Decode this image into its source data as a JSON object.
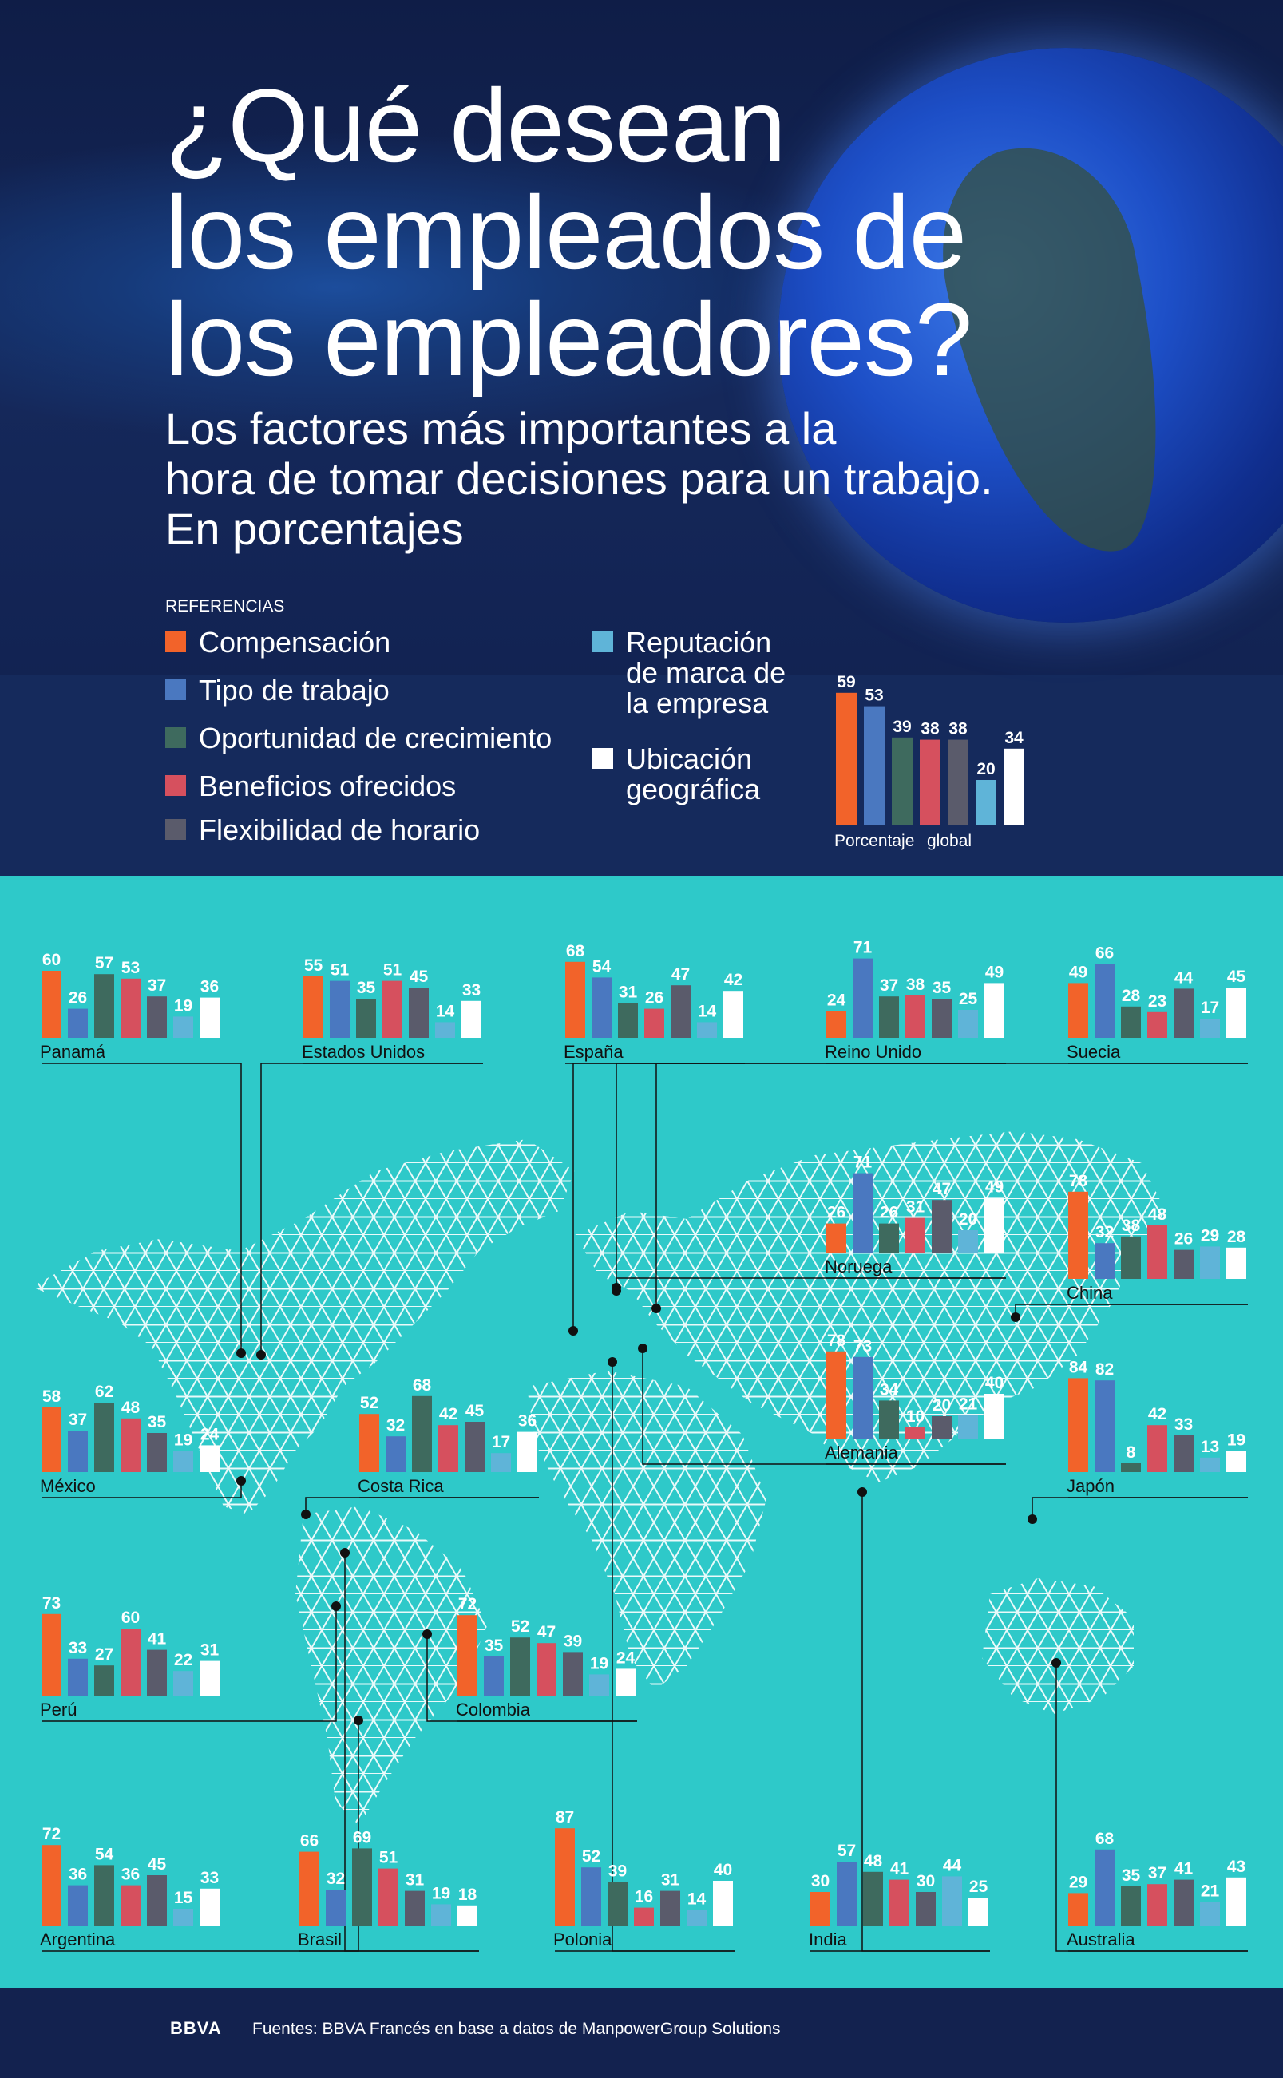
{
  "header": {
    "title_lines": [
      "¿Qué desean",
      "los empleados de",
      "los empleadores?"
    ],
    "subtitle_lines": [
      "Los factores más importantes a la",
      "hora de tomar decisiones para un trabajo.",
      "En porcentajes"
    ]
  },
  "legend": {
    "title": "REFERENCIAS",
    "items": [
      {
        "label": "Compensación",
        "color": "#f2632a"
      },
      {
        "label": "Tipo de trabajo",
        "color": "#4a78c0"
      },
      {
        "label": "Oportunidad de crecimiento",
        "color": "#3e6a5e"
      },
      {
        "label": "Beneficios ofrecidos",
        "color": "#d6505e"
      },
      {
        "label": "Flexibilidad de horario",
        "color": "#5a5b6b"
      },
      {
        "label": "Reputación de marca de la empresa",
        "color": "#5fb4d8"
      },
      {
        "label": "Ubicación geográfica",
        "color": "#ffffff"
      }
    ]
  },
  "footer": {
    "logo": "BBVA",
    "source": "Fuentes: BBVA Francés en base a datos de ManpowerGroup Solutions"
  },
  "chart_data": {
    "type": "bar",
    "unit": "%",
    "categories": [
      "Compensación",
      "Tipo de trabajo",
      "Oportunidad de crecimiento",
      "Beneficios ofrecidos",
      "Flexibilidad de horario",
      "Reputación de marca de la empresa",
      "Ubicación geográfica"
    ],
    "global": {
      "label_lines": [
        "Porcentaje",
        "global"
      ],
      "values": [
        59,
        53,
        39,
        38,
        38,
        20,
        34
      ]
    },
    "countries": [
      {
        "name": "Panamá",
        "values": [
          60,
          26,
          57,
          53,
          37,
          19,
          36
        ]
      },
      {
        "name": "Estados Unidos",
        "values": [
          55,
          51,
          35,
          51,
          45,
          14,
          33
        ]
      },
      {
        "name": "España",
        "values": [
          68,
          54,
          31,
          26,
          47,
          14,
          42
        ]
      },
      {
        "name": "Reino Unido",
        "values": [
          24,
          71,
          37,
          38,
          35,
          25,
          49
        ]
      },
      {
        "name": "Suecia",
        "values": [
          49,
          66,
          28,
          23,
          44,
          17,
          45
        ]
      },
      {
        "name": "Noruega",
        "values": [
          26,
          71,
          26,
          31,
          47,
          20,
          49
        ]
      },
      {
        "name": "China",
        "values": [
          78,
          32,
          38,
          48,
          26,
          29,
          28
        ]
      },
      {
        "name": "México",
        "values": [
          58,
          37,
          62,
          48,
          35,
          19,
          24
        ]
      },
      {
        "name": "Costa Rica",
        "values": [
          52,
          32,
          68,
          42,
          45,
          17,
          36
        ]
      },
      {
        "name": "Alemania",
        "values": [
          78,
          73,
          34,
          10,
          20,
          21,
          40
        ]
      },
      {
        "name": "Japón",
        "values": [
          84,
          82,
          8,
          42,
          33,
          13,
          19
        ]
      },
      {
        "name": "Perú",
        "values": [
          73,
          33,
          27,
          60,
          41,
          22,
          31
        ]
      },
      {
        "name": "Colombia",
        "values": [
          72,
          35,
          52,
          47,
          39,
          19,
          24
        ]
      },
      {
        "name": "Argentina",
        "values": [
          72,
          36,
          54,
          36,
          45,
          15,
          33
        ]
      },
      {
        "name": "Brasil",
        "values": [
          66,
          32,
          69,
          51,
          31,
          19,
          18
        ]
      },
      {
        "name": "Polonia",
        "values": [
          87,
          52,
          39,
          16,
          31,
          14,
          40
        ]
      },
      {
        "name": "India",
        "values": [
          30,
          57,
          48,
          41,
          30,
          44,
          25
        ]
      },
      {
        "name": "Australia",
        "values": [
          29,
          68,
          35,
          37,
          41,
          21,
          43
        ]
      }
    ]
  }
}
